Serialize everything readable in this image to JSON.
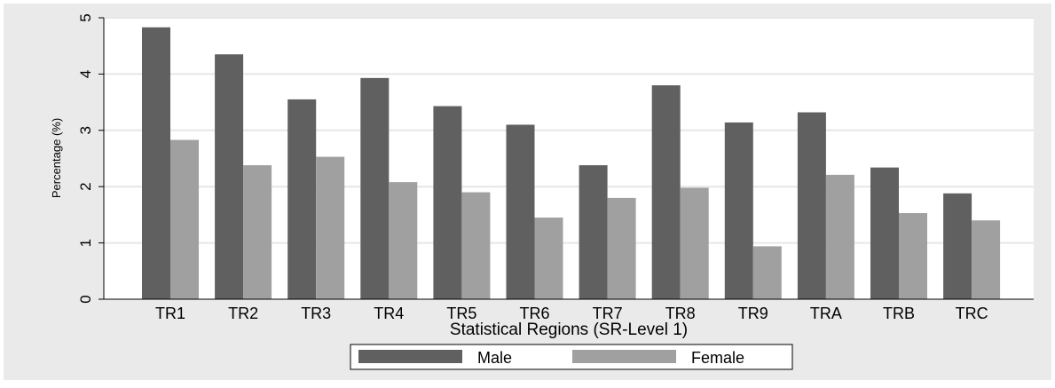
{
  "chart_data": {
    "type": "bar",
    "title": "",
    "xlabel": "Statistical Regions (SR-Level 1)",
    "ylabel": "Percentage (%)",
    "ylim": [
      0,
      5
    ],
    "yticks": [
      "0",
      "1",
      "2",
      "3",
      "4",
      "5"
    ],
    "grid": true,
    "legend_position": "bottom",
    "categories": [
      "TR1",
      "TR2",
      "TR3",
      "TR4",
      "TR5",
      "TR6",
      "TR7",
      "TR8",
      "TR9",
      "TRA",
      "TRB",
      "TRC"
    ],
    "series": [
      {
        "name": "Male",
        "color": "#606060",
        "values": [
          4.83,
          4.35,
          3.55,
          3.93,
          3.43,
          3.1,
          2.38,
          3.8,
          3.14,
          3.32,
          2.34,
          1.88
        ]
      },
      {
        "name": "Female",
        "color": "#a0a0a0",
        "values": [
          2.83,
          2.38,
          2.53,
          2.08,
          1.9,
          1.45,
          1.8,
          1.98,
          0.94,
          2.21,
          1.53,
          1.4
        ]
      }
    ]
  }
}
